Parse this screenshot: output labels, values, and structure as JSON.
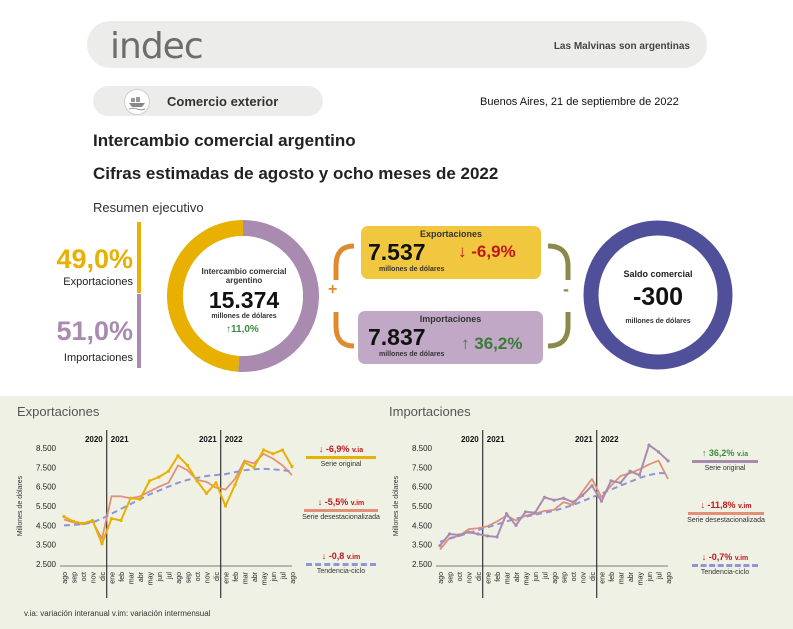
{
  "header": {
    "logo": "indec",
    "tagline": "Las Malvinas son argentinas"
  },
  "section": {
    "label": "Comercio exterior",
    "icon": "ship-icon"
  },
  "date": "Buenos Aires, 21 de septiembre de 2022",
  "title": "Intercambio comercial argentino",
  "subtitle": "Cifras estimadas de agosto y ocho meses de 2022",
  "summary_label": "Resumen ejecutivo",
  "colors": {
    "exports": "#e8b000",
    "imports": "#a98bb0",
    "balance": "#4f4f9a",
    "trend": "#8f95d8",
    "sa_exports": "#e3907a",
    "up": "#3c8a3c",
    "down": "#c0161c"
  },
  "shares": {
    "exports_pct": "49,0%",
    "exports_label": "Exportaciones",
    "exports_share": 0.49,
    "imports_pct": "51,0%",
    "imports_label": "Importaciones",
    "imports_share": 0.51
  },
  "trade": {
    "title_line1": "Intercambio comercial",
    "title_line2": "argentino",
    "value": "15.374",
    "unit": "millones de dólares",
    "change": "11,0%"
  },
  "plus_sign": "+",
  "minus_sign": "-",
  "exports_card": {
    "title": "Exportaciones",
    "value": "7.537",
    "unit": "millones de dólares",
    "change": "-6,9%"
  },
  "imports_card": {
    "title": "Importaciones",
    "value": "7.837",
    "unit": "millones de dólares",
    "change": "36,2%"
  },
  "balance": {
    "title": "Saldo comercial",
    "value": "-300",
    "unit": "millones de dólares"
  },
  "footnote": "v.ia: variación interanual   v.im: variación intermensual",
  "legend_labels": {
    "original": "Serie original",
    "sa": "Serie desestacionalizada",
    "trend": "Tendencia-ciclo"
  },
  "chart_data": [
    {
      "type": "line",
      "title": "Exportaciones",
      "ylabel": "Millones de dólares",
      "ylim": [
        2500,
        8500
      ],
      "yticks": [
        "8.500",
        "7.500",
        "6.500",
        "5.500",
        "4.500",
        "3.500",
        "2.500"
      ],
      "x": [
        "ago",
        "sep",
        "oct",
        "nov",
        "dic",
        "ene",
        "feb",
        "mar",
        "abr",
        "may",
        "jun",
        "jul",
        "ago",
        "sep",
        "oct",
        "nov",
        "dic",
        "ene",
        "feb",
        "mar",
        "abr",
        "may",
        "jun",
        "jul",
        "ago"
      ],
      "year_labels": [
        "2020",
        "2021",
        "2021",
        "2022"
      ],
      "series": [
        {
          "name": "Serie original",
          "values": [
            4950,
            4700,
            4600,
            4750,
            3550,
            4850,
            4750,
            5900,
            5850,
            6800,
            7000,
            7300,
            8100,
            7600,
            6800,
            6150,
            6700,
            5500,
            6600,
            7750,
            7500,
            8400,
            8200,
            8400,
            7537
          ]
        },
        {
          "name": "Serie desestacionalizada",
          "values": [
            4800,
            4650,
            4550,
            4700,
            3800,
            6000,
            6000,
            5900,
            6000,
            6250,
            6500,
            6700,
            7600,
            7350,
            6850,
            6750,
            6450,
            6350,
            6900,
            7850,
            7700,
            8200,
            7950,
            7600,
            7100
          ]
        },
        {
          "name": "Tendencia-ciclo",
          "values": [
            4500,
            4520,
            4560,
            4650,
            4850,
            5100,
            5350,
            5600,
            5850,
            6100,
            6300,
            6500,
            6700,
            6850,
            6950,
            7050,
            7100,
            7150,
            7250,
            7350,
            7400,
            7420,
            7400,
            7350,
            7300
          ]
        }
      ],
      "legend": [
        {
          "change": "-6,9%",
          "suffix": "v.ia",
          "direction": "down",
          "label": "Serie original"
        },
        {
          "change": "-5,5%",
          "suffix": "v.im",
          "direction": "down",
          "label": "Serie desestacionalizada"
        },
        {
          "change": "-0,8",
          "suffix": "v.im",
          "direction": "down",
          "label": "Tendencia-ciclo"
        }
      ]
    },
    {
      "type": "line",
      "title": "Importaciones",
      "ylabel": "Millones de dólares",
      "ylim": [
        2500,
        8500
      ],
      "yticks": [
        "8.500",
        "7.500",
        "6.500",
        "5.500",
        "4.500",
        "3.500",
        "2.500"
      ],
      "x": [
        "ago",
        "sep",
        "oct",
        "nov",
        "dic",
        "ene",
        "feb",
        "mar",
        "abr",
        "may",
        "jun",
        "jul",
        "ago",
        "sep",
        "oct",
        "nov",
        "dic",
        "ene",
        "feb",
        "mar",
        "abr",
        "may",
        "jun",
        "jul",
        "ago"
      ],
      "year_labels": [
        "2020",
        "2021",
        "2021",
        "2022"
      ],
      "series": [
        {
          "name": "Serie original",
          "values": [
            3450,
            4050,
            4000,
            4150,
            4050,
            3950,
            3900,
            5100,
            4500,
            5200,
            5150,
            5950,
            5800,
            5900,
            5700,
            6050,
            6550,
            5750,
            6800,
            6700,
            7300,
            7100,
            8650,
            8300,
            7837
          ]
        },
        {
          "name": "Serie desestacionalizada",
          "values": [
            3250,
            3850,
            3950,
            4300,
            4350,
            4450,
            4700,
            5000,
            4750,
            5000,
            5100,
            5250,
            5300,
            5700,
            5550,
            6250,
            6900,
            5950,
            6550,
            7050,
            7200,
            7400,
            7650,
            7850,
            6900
          ]
        },
        {
          "name": "Tendencia-ciclo",
          "values": [
            3650,
            3800,
            3950,
            4100,
            4250,
            4400,
            4550,
            4700,
            4850,
            4950,
            5050,
            5150,
            5250,
            5400,
            5550,
            5750,
            5950,
            6150,
            6350,
            6550,
            6750,
            6950,
            7100,
            7200,
            7200
          ]
        }
      ],
      "legend": [
        {
          "change": "36,2%",
          "suffix": "v.ia",
          "direction": "up",
          "label": "Serie original"
        },
        {
          "change": "-11,8%",
          "suffix": "v.im",
          "direction": "down",
          "label": "Serie desestacionalizada"
        },
        {
          "change": "-0,7%",
          "suffix": "v.im",
          "direction": "down",
          "label": "Tendencia-ciclo"
        }
      ]
    }
  ]
}
